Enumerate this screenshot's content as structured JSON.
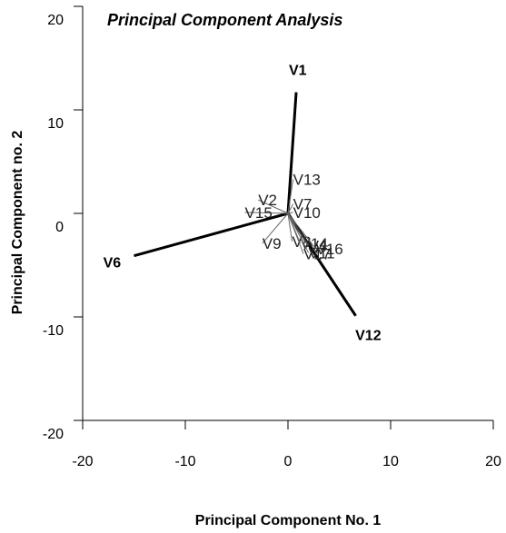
{
  "chart_data": {
    "type": "biplot",
    "title": "Principal Component Analysis",
    "xlabel": "Principal Component No. 1",
    "ylabel": "Principal Component no. 2",
    "xlim": [
      -20,
      20
    ],
    "ylim": [
      -20,
      20
    ],
    "xticks": [
      -20,
      -10,
      0,
      10,
      20
    ],
    "yticks": [
      -20,
      -10,
      0,
      10,
      20
    ],
    "color": "#000000",
    "names": [
      "V1",
      "V6",
      "V12",
      "V13",
      "V2",
      "V15",
      "V7",
      "V10",
      "V9",
      "V8",
      "V14",
      "V4",
      "V16",
      "V17",
      "V11"
    ],
    "x": [
      0.8,
      -15.0,
      6.6,
      0.5,
      -2.9,
      -4.2,
      0.5,
      0.5,
      -2.5,
      0.4,
      1.2,
      2.0,
      2.7,
      1.5,
      2.0
    ],
    "y": [
      11.7,
      -4.1,
      -9.9,
      3.3,
      1.3,
      0.1,
      0.9,
      0.1,
      -2.9,
      -2.7,
      -2.9,
      -3.1,
      -3.4,
      -3.9,
      -3.8
    ]
  }
}
